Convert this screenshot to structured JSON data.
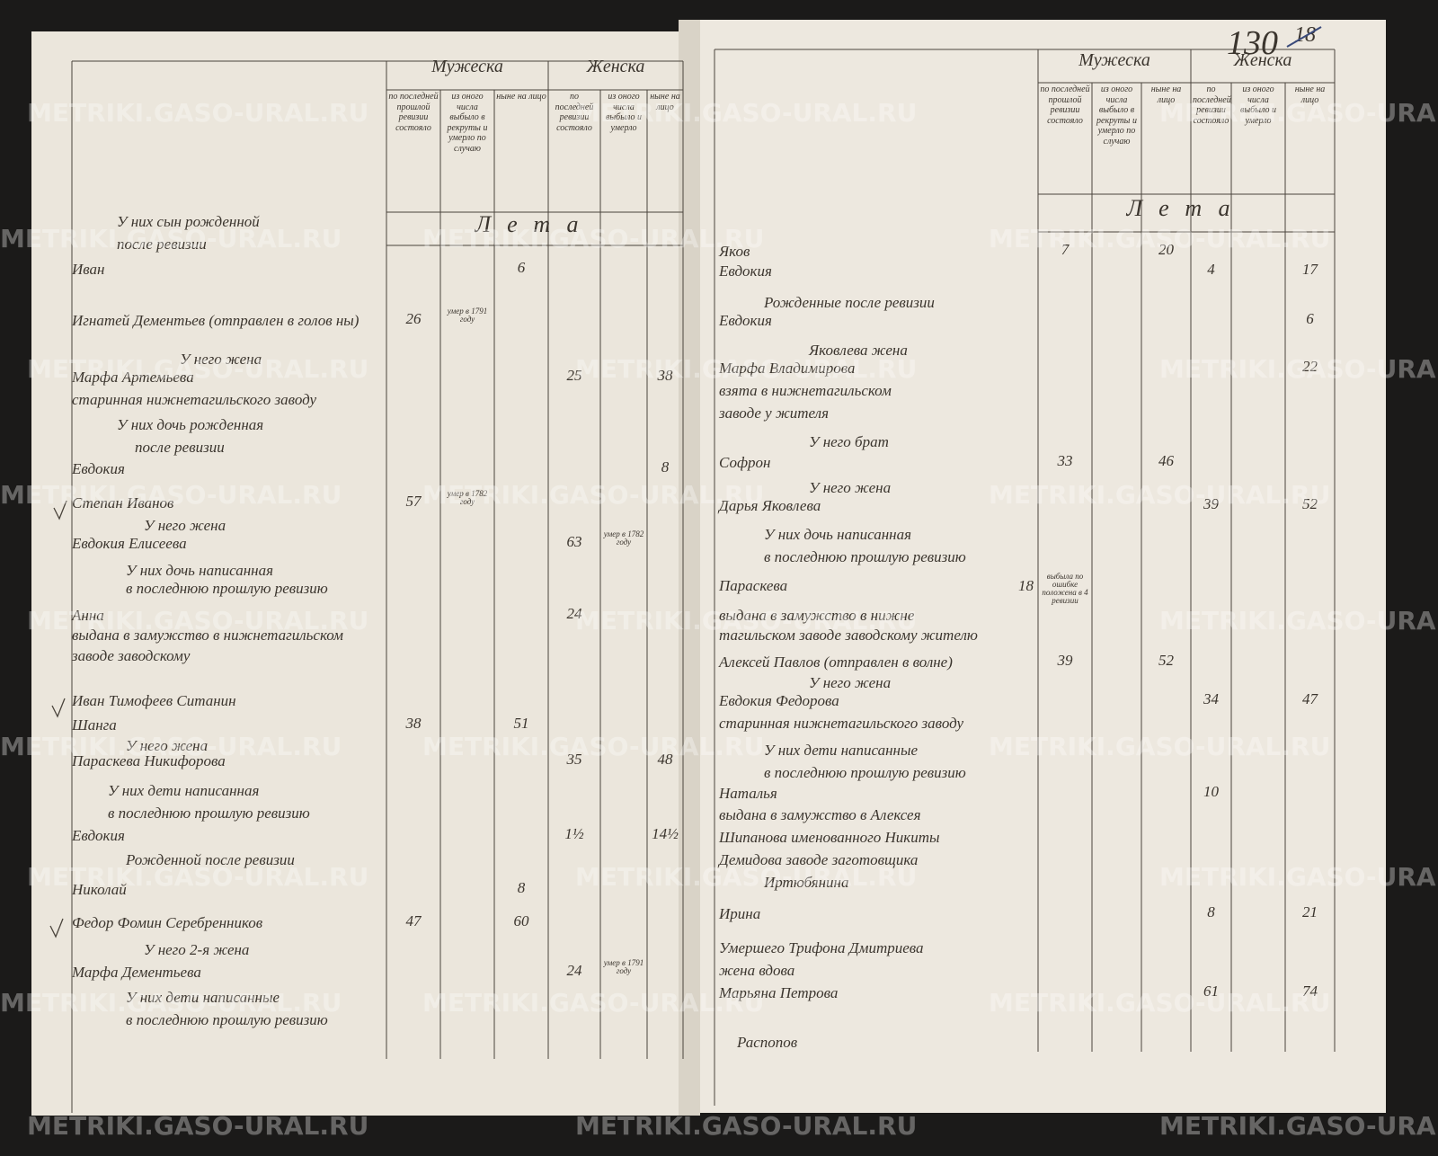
{
  "watermark": "METRIKI.GASO-URAL.RU",
  "pages": [
    {
      "header": {
        "male": "Мужеска",
        "female": "Женска",
        "years": "Лета",
        "columns": [
          "по последней прошлой ревизии состояло",
          "из оного числа выбыло в рекруты и умерло по случаю",
          "ныне на лицо",
          "по последней ревизии состояло",
          "из оного числа выбыло и умерло",
          "ныне на лицо"
        ]
      },
      "rows": [
        {
          "text": "У них сын рожденной"
        },
        {
          "text": "после ревизии"
        },
        {
          "text": "Иван",
          "cells": [
            null,
            null,
            "6",
            null,
            null,
            null
          ]
        },
        {
          "text": "Игнатей Дементьев (отправлен в голов ны)",
          "cells": [
            "26",
            "умер в 1791 году",
            null,
            null,
            null,
            null
          ]
        },
        {
          "text": "У него жена"
        },
        {
          "text": "Марфа Артемьева",
          "cells": [
            null,
            null,
            null,
            "25",
            null,
            "38"
          ]
        },
        {
          "text": "старинная нижнетагильского заводу"
        },
        {
          "text": "У них дочь рожденная"
        },
        {
          "text": "после ревизии"
        },
        {
          "text": "Евдокия",
          "cells": [
            null,
            null,
            null,
            null,
            null,
            "8"
          ]
        },
        {
          "text": "Степан Иванов",
          "cells": [
            "57",
            "умер в 1782 году",
            null,
            null,
            null,
            null
          ]
        },
        {
          "text": "У него жена"
        },
        {
          "text": "Евдокия Елисеева",
          "cells": [
            null,
            null,
            null,
            "63",
            "умер в 1782 году",
            null
          ]
        },
        {
          "text": "У них дочь написанная"
        },
        {
          "text": "в последнюю прошлую ревизию"
        },
        {
          "text": "Анна",
          "cells": [
            null,
            null,
            null,
            "24",
            null,
            null
          ]
        },
        {
          "text": "выдана в замужство в нижнетагильском"
        },
        {
          "text": "заводе заводскому"
        },
        {
          "text": "Иван Тимофеев Ситанин"
        },
        {
          "text": "Шанга",
          "cells": [
            "38",
            null,
            "51",
            null,
            null,
            null
          ]
        },
        {
          "text": "У него жена"
        },
        {
          "text": "Параскева Никифорова",
          "cells": [
            null,
            null,
            null,
            "35",
            null,
            "48"
          ]
        },
        {
          "text": "У них дети написанная"
        },
        {
          "text": "в последнюю прошлую ревизию"
        },
        {
          "text": "Евдокия",
          "cells": [
            null,
            null,
            null,
            "1½",
            null,
            "14½"
          ]
        },
        {
          "text": "Рожденной после ревизии"
        },
        {
          "text": "Николай",
          "cells": [
            null,
            null,
            "8",
            null,
            null,
            null
          ]
        },
        {
          "text": "Федор Фомин Серебренников",
          "cells": [
            "47",
            null,
            "60",
            null,
            null,
            null
          ]
        },
        {
          "text": "У него 2-я жена"
        },
        {
          "text": "Марфа Дементьева",
          "cells": [
            null,
            null,
            null,
            "24",
            "умер в 1791 году",
            null
          ]
        },
        {
          "text": "У них дети написанные"
        },
        {
          "text": "в последнюю прошлую ревизию"
        }
      ]
    },
    {
      "page_number": "130",
      "old_page_number": "18",
      "header": {
        "male": "Мужеска",
        "female": "Женска",
        "years": "Лета",
        "columns": [
          "по последней прошлой ревизии состояло",
          "из оного числа выбыло в рекруты и умерло по случаю",
          "ныне на лицо",
          "по последней ревизии состояло",
          "из оного числа выбыло и умерло",
          "ныне на лицо"
        ]
      },
      "rows": [
        {
          "text": "Яков",
          "cells": [
            "7",
            null,
            "20",
            null,
            null,
            null
          ]
        },
        {
          "text": "Евдокия",
          "cells": [
            null,
            null,
            null,
            "4",
            null,
            "17"
          ]
        },
        {
          "text": "Рожденные после ревизии"
        },
        {
          "text": "Евдокия",
          "cells": [
            null,
            null,
            null,
            null,
            null,
            "6"
          ]
        },
        {
          "text": "Яковлева жена"
        },
        {
          "text": "Марфа Владимирова",
          "cells": [
            null,
            null,
            null,
            null,
            null,
            "22"
          ]
        },
        {
          "text": "взята в нижнетагильском"
        },
        {
          "text": "заводе у жителя"
        },
        {
          "text": "У него брат"
        },
        {
          "text": "Софрон",
          "cells": [
            "33",
            null,
            "46",
            null,
            null,
            null
          ]
        },
        {
          "text": "У него жена"
        },
        {
          "text": "Дарья Яковлева",
          "cells": [
            null,
            null,
            null,
            "39",
            null,
            "52"
          ]
        },
        {
          "text": "У них дочь написанная"
        },
        {
          "text": "в последнюю прошлую ревизию"
        },
        {
          "text": "Параскева",
          "age": "18",
          "cells": [
            "выбыла по ошибке положена в 4 ревизии",
            null,
            null,
            null,
            null,
            null
          ]
        },
        {
          "text": "выдана в замужство в нижне"
        },
        {
          "text": "тагильском заводе заводскому жителю"
        },
        {
          "text": "Алексей Павлов (отправлен в волне)",
          "cells": [
            "39",
            null,
            "52",
            null,
            null,
            null
          ]
        },
        {
          "text": "У него жена"
        },
        {
          "text": "Евдокия Федорова",
          "cells": [
            null,
            null,
            null,
            "34",
            null,
            "47"
          ]
        },
        {
          "text": "старинная нижнетагильского заводу"
        },
        {
          "text": "У них дети написанные"
        },
        {
          "text": "в последнюю прошлую ревизию"
        },
        {
          "text": "Наталья",
          "cells": [
            null,
            null,
            null,
            "10",
            null,
            null
          ]
        },
        {
          "text": "выдана в замужство в Алексея"
        },
        {
          "text": "Шипанова именованного Никиты"
        },
        {
          "text": "Демидова заводе заготовщика"
        },
        {
          "text": "Иртюбянина"
        },
        {
          "text": "Ирина",
          "cells": [
            null,
            null,
            null,
            "8",
            null,
            "21"
          ]
        },
        {
          "text": "Умершего Трифона Дмитриева"
        },
        {
          "text": "жена вдова"
        },
        {
          "text": "Марьяна Петрова",
          "cells": [
            null,
            null,
            null,
            "61",
            null,
            "74"
          ]
        },
        {
          "text": "Распопов"
        }
      ]
    }
  ]
}
